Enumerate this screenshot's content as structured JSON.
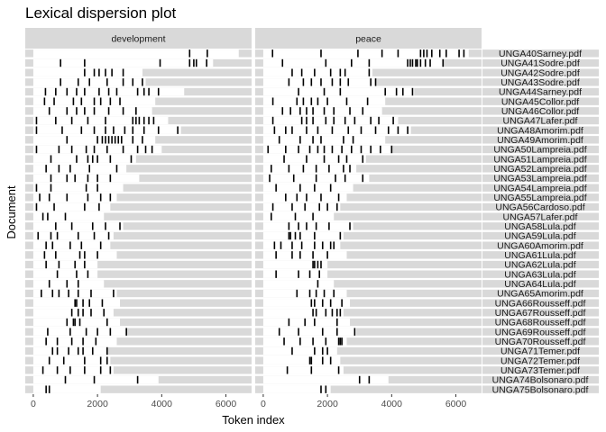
{
  "chart_data": {
    "type": "lexical-dispersion",
    "title": "Lexical dispersion plot",
    "xlabel": "Token index",
    "ylabel": "Document",
    "xlim": [
      -250,
      6800
    ],
    "xticks": [
      0,
      2000,
      4000,
      6000
    ],
    "xtick_labels": [
      "0",
      "2000",
      "4000",
      "6000"
    ],
    "facets": [
      "development",
      "peace"
    ],
    "documents": [
      {
        "label": "UNGA40Sarney.pdf",
        "length": 6400,
        "development": [
          4870,
          5420
        ],
        "peace": [
          290,
          1800,
          2950,
          3700,
          4200,
          4900,
          5000,
          5100,
          5250,
          5500,
          5700,
          6100,
          6250
        ]
      },
      {
        "label": "UNGA41Sodre.pdf",
        "length": 5600,
        "development": [
          850,
          1600,
          3950,
          4870,
          5000,
          5080,
          5400
        ],
        "peace": [
          600,
          1950,
          2750,
          3300,
          4500,
          4580,
          4650,
          4750,
          4800,
          4900,
          5050,
          5200,
          5600
        ]
      },
      {
        "label": "UNGA42Sodre.pdf",
        "length": 3400,
        "development": [
          1600,
          1900,
          2050,
          2250,
          2450,
          2800
        ],
        "peace": [
          900,
          1200,
          1600,
          2100,
          2400,
          2550,
          3300
        ]
      },
      {
        "label": "UNGA43Sodre.pdf",
        "length": 3500,
        "development": [
          850,
          1400,
          1750,
          2300,
          2800,
          3100,
          3400
        ],
        "peace": [
          800,
          1250,
          1500,
          1800,
          2150,
          2400,
          2650,
          3350,
          3500
        ]
      },
      {
        "label": "UNGA44Sarney.pdf",
        "length": 4700,
        "development": [
          380,
          700,
          1050,
          1350,
          1600,
          2050,
          2350,
          2600,
          3250,
          3450,
          3600,
          3900
        ],
        "peace": [
          1100,
          1900,
          2400,
          3800,
          4150,
          4350,
          4650
        ]
      },
      {
        "label": "UNGA45Collor.pdf",
        "length": 3800,
        "development": [
          350,
          650,
          1250,
          1500,
          1900,
          2100,
          2400,
          2700
        ],
        "peace": [
          300,
          1050,
          1250,
          1500,
          1700,
          2000,
          2600,
          3250
        ]
      },
      {
        "label": "UNGA46Collor.pdf",
        "length": 3700,
        "development": [
          500,
          1050,
          1350,
          1600,
          1900,
          2350,
          2800,
          3200
        ],
        "peace": [
          600,
          850,
          1150,
          1350,
          1550,
          1900,
          2200,
          2700,
          3100
        ]
      },
      {
        "label": "UNGA47Lafer.pdf",
        "length": 4200,
        "development": [
          100,
          700,
          1200,
          1700,
          2250,
          3100,
          3200,
          3300,
          3450,
          3600,
          3750
        ],
        "peace": [
          300,
          1200,
          1350,
          1550,
          1950,
          2200,
          2550,
          2850,
          3350,
          3600,
          4050
        ]
      },
      {
        "label": "UNGA48Amorim.pdf",
        "length": 4600,
        "development": [
          100,
          900,
          1500,
          1900,
          2250,
          2500,
          2850,
          3100,
          3450,
          3900,
          4500
        ],
        "peace": [
          350,
          700,
          900,
          1350,
          1700,
          2150,
          2650,
          3050,
          3500,
          3900,
          4200,
          4500
        ]
      },
      {
        "label": "UNGA49Amorim.pdf",
        "length": 3800,
        "development": [
          1050,
          2000,
          2150,
          2250,
          2350,
          2450,
          2550,
          2650,
          2750,
          3100,
          3400
        ],
        "peace": [
          500,
          1150,
          1550,
          1800,
          2500,
          2800
        ]
      },
      {
        "label": "UNGA50Lampreia.pdf",
        "length": 4000,
        "development": [
          100,
          800,
          1200,
          1650,
          1900,
          2300,
          2800,
          3250,
          3500,
          3700
        ],
        "peace": [
          150,
          700,
          1100,
          1450,
          1700,
          1900,
          2150,
          2450,
          2750,
          3050,
          3350,
          3650,
          4000
        ]
      },
      {
        "label": "UNGA51Lampreia.pdf",
        "length": 3200,
        "development": [
          550,
          1350,
          1700,
          1850,
          2000,
          2400,
          3050
        ],
        "peace": [
          650,
          1350,
          1900,
          2350,
          2600,
          3100
        ]
      },
      {
        "label": "UNGA52Lampreia.pdf",
        "length": 2900,
        "development": [
          400,
          800,
          1150,
          1750,
          2600
        ],
        "peace": [
          250,
          800,
          1250,
          1650,
          2050,
          2500,
          2700
        ]
      },
      {
        "label": "UNGA53Lampreia.pdf",
        "length": 3300,
        "development": [
          550,
          1050,
          1300,
          1700,
          2000,
          2400
        ],
        "peace": [
          200,
          950,
          1650,
          2250,
          2550,
          3100
        ]
      },
      {
        "label": "UNGA54Lampreia.pdf",
        "length": 2800,
        "development": [
          100,
          550,
          1650,
          2000
        ],
        "peace": [
          400,
          1150,
          1600,
          2100
        ]
      },
      {
        "label": "UNGA55Lampreia.pdf",
        "length": 2600,
        "development": [
          200,
          500,
          1050,
          1700,
          2100,
          2400
        ],
        "peace": [
          700,
          1050,
          1350,
          1800,
          2350
        ]
      },
      {
        "label": "UNGA56Cardoso.pdf",
        "length": 2400,
        "development": [
          100,
          650,
          1600,
          2050
        ],
        "peace": [
          300,
          900,
          1300,
          1750,
          2000,
          2300
        ]
      },
      {
        "label": "UNGA57Lafer.pdf",
        "length": 2200,
        "development": [
          300,
          450,
          1000
        ],
        "peace": [
          250,
          1000,
          1550
        ]
      },
      {
        "label": "UNGA58Lula.pdf",
        "length": 2800,
        "development": [
          700,
          1200,
          1850,
          2250,
          2700
        ],
        "peace": [
          800,
          1100,
          1350,
          1650,
          2050,
          2700
        ]
      },
      {
        "label": "UNGA59Lula.pdf",
        "length": 2500,
        "development": [
          150,
          550,
          750,
          1400,
          1900,
          2350
        ],
        "peace": [
          800,
          850,
          1000,
          1150,
          1600,
          2400
        ]
      },
      {
        "label": "UNGA60Amorim.pdf",
        "length": 2400,
        "development": [
          400,
          600,
          1150,
          1500,
          2100
        ],
        "peace": [
          350,
          550,
          900,
          1200,
          1600,
          1850,
          2100,
          2200
        ]
      },
      {
        "label": "UNGA61Lula.pdf",
        "length": 2600,
        "development": [
          350,
          700,
          1450,
          1600,
          2000
        ],
        "peace": [
          400,
          900,
          1150,
          1550,
          2000
        ]
      },
      {
        "label": "UNGA62Lula.pdf",
        "length": 2000,
        "development": [
          400,
          800,
          1300,
          1600
        ],
        "peace": [
          1550,
          1600,
          1700,
          1800
        ]
      },
      {
        "label": "UNGA63Lula.pdf",
        "length": 2000,
        "development": [
          750,
          1350,
          1700
        ],
        "peace": [
          400,
          1100,
          1450,
          1750
        ]
      },
      {
        "label": "UNGA64Lula.pdf",
        "length": 2200,
        "development": [
          500,
          1050,
          1400
        ],
        "peace": [
          1700
        ]
      },
      {
        "label": "UNGA65Amorim.pdf",
        "length": 2600,
        "development": [
          250,
          600,
          800,
          1100,
          1400,
          1800,
          2500
        ],
        "peace": [
          1050,
          1450,
          1650,
          1900,
          2200
        ]
      },
      {
        "label": "UNGA66Rousseff.pdf",
        "length": 2700,
        "development": [
          1300,
          1350,
          1550,
          1750,
          2150
        ],
        "peace": [
          1500,
          1600,
          1850,
          2100,
          2450
        ]
      },
      {
        "label": "UNGA67Rousseff.pdf",
        "length": 2500,
        "development": [
          1200,
          1400,
          1550,
          1800,
          2200
        ],
        "peace": [
          1550,
          1650,
          1950,
          2150,
          2300,
          2400
        ]
      },
      {
        "label": "UNGA68Rousseff.pdf",
        "length": 2700,
        "development": [
          1050,
          1250,
          1300,
          1450,
          2300
        ],
        "peace": [
          800,
          1300,
          1600,
          2300
        ]
      },
      {
        "label": "UNGA69Rousseff.pdf",
        "length": 2900,
        "development": [
          450,
          1150,
          1650,
          2000,
          2400,
          2900
        ],
        "peace": [
          500,
          1100,
          1850,
          2300,
          2850
        ]
      },
      {
        "label": "UNGA70Rousseff.pdf",
        "length": 2600,
        "development": [
          400,
          750,
          1200,
          1550,
          1950
        ],
        "peace": [
          650,
          1150,
          1550,
          1950,
          2350,
          2400,
          2450
        ]
      },
      {
        "label": "UNGA71Temer.pdf",
        "length": 2300,
        "development": [
          600,
          750,
          1100,
          1400,
          1550,
          1850,
          2300
        ],
        "peace": [
          900,
          1600,
          1850,
          2000
        ]
      },
      {
        "label": "UNGA72Temer.pdf",
        "length": 2400,
        "development": [
          500,
          950,
          1600,
          2100,
          2300
        ],
        "peace": [
          1450,
          1500,
          1850,
          2100
        ]
      },
      {
        "label": "UNGA73Temer.pdf",
        "length": 2500,
        "development": [
          300,
          750,
          1150,
          1600,
          2100,
          2400
        ],
        "peace": [
          750,
          1500,
          2350
        ]
      },
      {
        "label": "UNGA74Bolsonaro.pdf",
        "length": 3900,
        "development": [
          1000,
          1900,
          3250
        ],
        "peace": [
          3000,
          3300
        ]
      },
      {
        "label": "UNGA75Bolsonaro.pdf",
        "length": 2100,
        "development": [
          400,
          500
        ],
        "peace": [
          1800,
          1950
        ]
      }
    ]
  }
}
